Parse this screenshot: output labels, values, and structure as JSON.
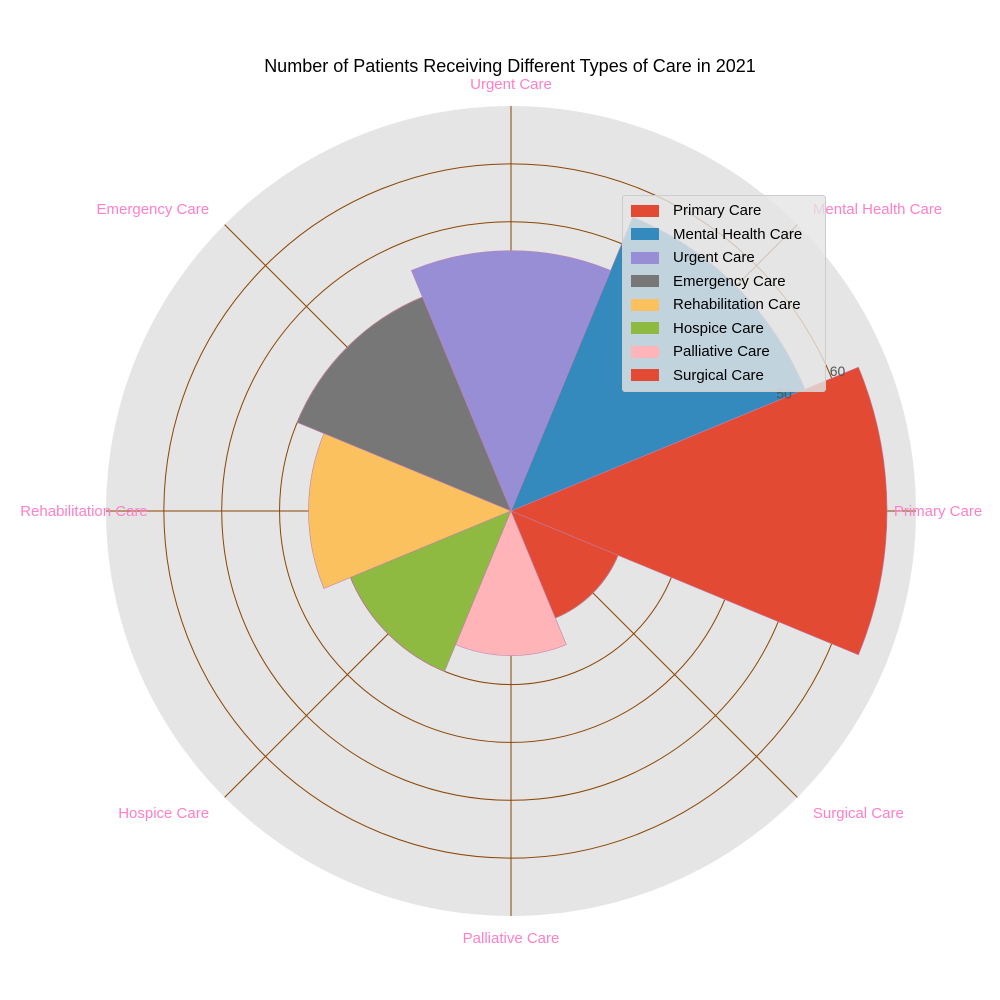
{
  "chart_data": {
    "type": "polar-bar",
    "title": "Number of Patients Receiving Different Types of Care in 2021",
    "categories": [
      "Primary Care",
      "Mental Health Care",
      "Urgent Care",
      "Emergency Care",
      "Rehabilitation Care",
      "Hospice Care",
      "Palliative Care",
      "Surgical Care"
    ],
    "values": [
      65,
      55,
      45,
      40,
      35,
      30,
      25,
      20
    ],
    "colors": [
      "#E24A33",
      "#348ABD",
      "#988ED5",
      "#777777",
      "#FBC15E",
      "#8EBA42",
      "#FFB5B8",
      "#E24A33"
    ],
    "radial_ticks": [
      "50",
      "60"
    ],
    "rmax": 70,
    "grid": true,
    "legend": {
      "position": "upper-right",
      "entries": [
        "Primary Care",
        "Mental Health Care",
        "Urgent Care",
        "Emergency Care",
        "Rehabilitation Care",
        "Hospice Care",
        "Palliative Care",
        "Surgical Care"
      ]
    },
    "label_color": "#ff7fc8",
    "grid_color": "#8b4500",
    "background_color": "#e5e5e5"
  }
}
